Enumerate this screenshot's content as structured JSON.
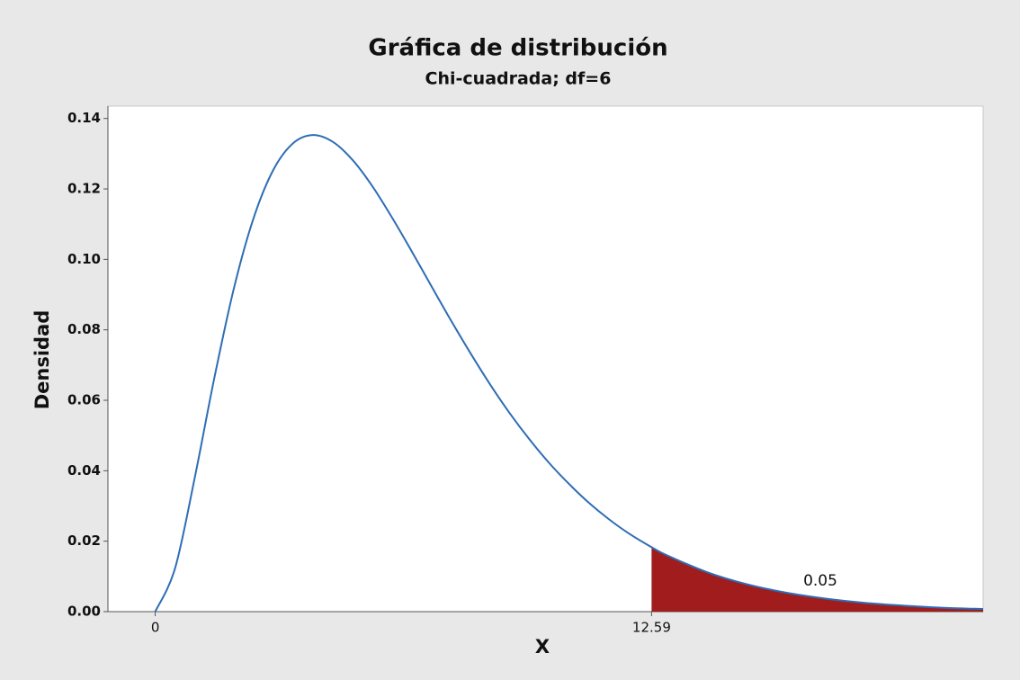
{
  "chart_data": {
    "type": "line",
    "title": "Gráfica de distribución",
    "subtitle": "Chi-cuadrada; df=6",
    "x_label": "X",
    "y_label": "Densidad",
    "x": [
      0,
      0.5,
      1,
      1.5,
      2,
      2.5,
      3,
      3.5,
      4,
      4.5,
      5,
      5.5,
      6,
      6.5,
      7,
      7.5,
      8,
      8.5,
      9,
      9.5,
      10,
      10.5,
      11,
      11.5,
      12,
      12.59,
      13,
      14,
      15,
      16,
      17,
      18,
      19,
      20,
      21
    ],
    "series": [
      {
        "color": "#2f6db5",
        "values": [
          0,
          0.0122,
          0.0379,
          0.0664,
          0.092,
          0.1119,
          0.1255,
          0.133,
          0.1353,
          0.1334,
          0.1283,
          0.1209,
          0.112,
          0.1024,
          0.0925,
          0.0827,
          0.0733,
          0.0644,
          0.0562,
          0.0488,
          0.0421,
          0.0362,
          0.0309,
          0.0263,
          0.0223,
          0.0183,
          0.0159,
          0.0112,
          0.0078,
          0.0054,
          0.0037,
          0.0025,
          0.0017,
          0.0011,
          0.00076
        ]
      }
    ],
    "shade": {
      "from": 12.59,
      "area": 0.05,
      "color": "#a11d1d"
    },
    "xlim": [
      -1.2,
      21
    ],
    "ylim": [
      0,
      0.1435
    ],
    "xticks": [
      0,
      12.59
    ],
    "yticks": [
      {
        "value": 0,
        "label": "0.00"
      },
      {
        "value": 0.02,
        "label": "0.02"
      },
      {
        "value": 0.04,
        "label": "0.04"
      },
      {
        "value": 0.06,
        "label": "0.06"
      },
      {
        "value": 0.08,
        "label": "0.08"
      },
      {
        "value": 0.1,
        "label": "0.10"
      },
      {
        "value": 0.12,
        "label": "0.12"
      },
      {
        "value": 0.14,
        "label": "0.14"
      }
    ]
  }
}
